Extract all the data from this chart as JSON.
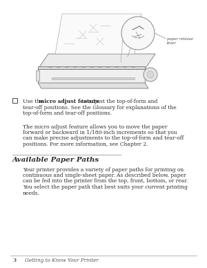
{
  "page_bg": "#ffffff",
  "bullet_text_pre": "Use the ",
  "bullet_bold": "micro adjust feature",
  "bullet_text_post": " to adjust the top-of-form and",
  "bullet_line2": "tear-off positions. See the Glossary for explanations of the",
  "bullet_line3": "top-of-form and tear-off positions.",
  "para1_line1": "The micro adjust feature allows you to move the paper",
  "para1_line2": "forward or backward in 1/180-inch increments so that you",
  "para1_line3": "can make precise adjustments to the top-of-form and tear-off",
  "para1_line4": "positions. For more information, see Chapter 2.",
  "section_title": "Available Paper Paths",
  "para2_line1": "Your printer provides a variety of paper paths for printing on",
  "para2_line2": "continuous and single-sheet paper. As described below, paper",
  "para2_line3": "can be fed into the printer from the top, front, bottom, or rear.",
  "para2_line4": "You select the paper path that best suits your current printing",
  "para2_line5": "needs.",
  "footer_num": "3",
  "footer_text": "Getting to Know Your Printer",
  "label_paper_release": "paper release\nlever",
  "font_size_body": 5.5,
  "font_size_section": 7.5,
  "font_size_footer": 5.2,
  "font_size_label": 4.0,
  "text_color": "#2a2a2a",
  "footer_color": "#555555",
  "line_color": "#999999",
  "sketch_color": "#777777",
  "sketch_lw": 0.6
}
